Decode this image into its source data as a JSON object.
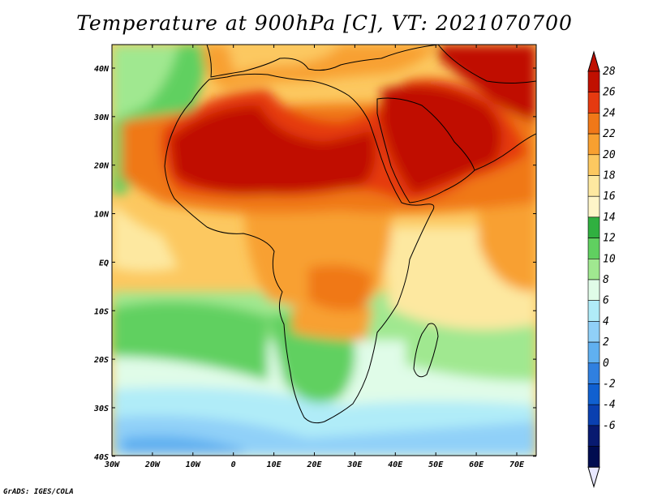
{
  "title": "Temperature at 900hPa [C], VT: 2021070700",
  "credit": "GrADS: IGES/COLA",
  "map": {
    "region": "Africa and Arabian Peninsula",
    "lat_labels": [
      "40N",
      "30N",
      "20N",
      "10N",
      "EQ",
      "10S",
      "20S",
      "30S",
      "40S"
    ],
    "lon_labels": [
      "30W",
      "20W",
      "10W",
      "0",
      "10E",
      "20E",
      "30E",
      "40E",
      "50E",
      "60E",
      "70E"
    ]
  },
  "colorbar": {
    "levels": [
      "28",
      "26",
      "24",
      "22",
      "20",
      "18",
      "16",
      "14",
      "12",
      "10",
      "8",
      "6",
      "4",
      "2",
      "0",
      "-2",
      "-4",
      "-6"
    ],
    "colors": [
      "#c01000",
      "#e53a10",
      "#f07818",
      "#f8a030",
      "#fcc860",
      "#fde8a0",
      "#fef5c8",
      "#30b040",
      "#60d060",
      "#a0e890",
      "#e0fce8",
      "#b0ecf8",
      "#90d0f8",
      "#60b0f0",
      "#3080e0",
      "#1060d0",
      "#0a40b0",
      "#081a70",
      "#000c50"
    ],
    "top_arrow_color": "#c01000",
    "bottom_arrow_color": "#e8e8ff"
  }
}
